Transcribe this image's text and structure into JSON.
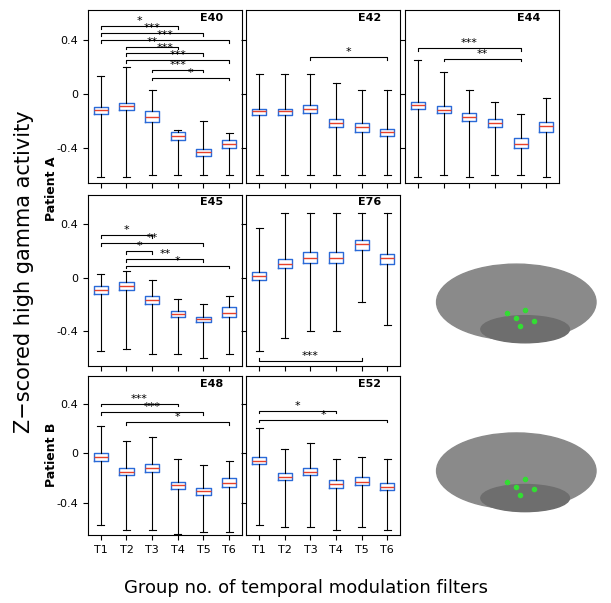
{
  "y_label": "Z−scored high gamma activity",
  "x_label": "Group no. of temporal modulation filters",
  "annotations": [
    "Patient A",
    "Patient B"
  ],
  "chart_data": [
    {
      "type": "box",
      "title": "E40",
      "color": "#2a6ad8",
      "tick_labels": "y",
      "categories": [
        "T1",
        "T2",
        "T3",
        "T4",
        "T5",
        "T6"
      ],
      "boxes": [
        {
          "median": -0.12,
          "q1": -0.15,
          "q3": -0.1,
          "whislo": -0.62,
          "whishi": 0.13
        },
        {
          "median": -0.09,
          "q1": -0.12,
          "q3": -0.07,
          "whislo": -0.62,
          "whishi": 0.2
        },
        {
          "median": -0.17,
          "q1": -0.21,
          "q3": -0.13,
          "whislo": -0.6,
          "whishi": 0.03
        },
        {
          "median": -0.31,
          "q1": -0.34,
          "q3": -0.28,
          "whislo": -0.6,
          "whishi": -0.27
        },
        {
          "median": -0.43,
          "q1": -0.46,
          "q3": -0.41,
          "whislo": -0.6,
          "whishi": -0.2
        },
        {
          "median": -0.37,
          "q1": -0.4,
          "q3": -0.34,
          "whislo": -0.6,
          "whishi": -0.29
        }
      ],
      "comparisons": [
        {
          "from": "T1",
          "to": "T4",
          "label": "*",
          "y": 0.5
        },
        {
          "from": "T1",
          "to": "T5",
          "label": "***",
          "y": 0.45
        },
        {
          "from": "T1",
          "to": "T6",
          "label": "***",
          "y": 0.4
        },
        {
          "from": "T2",
          "to": "T4",
          "label": "**",
          "y": 0.35
        },
        {
          "from": "T2",
          "to": "T5",
          "label": "***",
          "y": 0.3
        },
        {
          "from": "T2",
          "to": "T6",
          "label": "***",
          "y": 0.25
        },
        {
          "from": "T3",
          "to": "T5",
          "label": "***",
          "y": 0.18
        },
        {
          "from": "T3",
          "to": "T6",
          "label": "*",
          "y": 0.12
        }
      ],
      "ylim": [
        -0.66,
        0.62
      ],
      "yticks": [
        -0.4,
        0,
        0.4
      ]
    },
    {
      "type": "box",
      "title": "E42",
      "color": "#2a6ad8",
      "tick_labels": false,
      "categories": [
        "T1",
        "T2",
        "T3",
        "T4",
        "T5",
        "T6"
      ],
      "boxes": [
        {
          "median": -0.13,
          "q1": -0.16,
          "q3": -0.11,
          "whislo": -0.6,
          "whishi": 0.15
        },
        {
          "median": -0.13,
          "q1": -0.16,
          "q3": -0.11,
          "whislo": -0.6,
          "whishi": 0.15
        },
        {
          "median": -0.11,
          "q1": -0.14,
          "q3": -0.08,
          "whislo": -0.6,
          "whishi": 0.15
        },
        {
          "median": -0.22,
          "q1": -0.25,
          "q3": -0.19,
          "whislo": -0.6,
          "whishi": 0.08
        },
        {
          "median": -0.25,
          "q1": -0.28,
          "q3": -0.22,
          "whislo": -0.6,
          "whishi": 0.03
        },
        {
          "median": -0.28,
          "q1": -0.31,
          "q3": -0.26,
          "whislo": -0.6,
          "whishi": 0.03
        }
      ],
      "comparisons": [
        {
          "from": "T3",
          "to": "T6",
          "label": "*",
          "y": 0.27
        }
      ],
      "ylim": [
        -0.66,
        0.62
      ],
      "yticks": [
        -0.4,
        0,
        0.4
      ]
    },
    {
      "type": "box",
      "title": "E44",
      "color": "#2a6ad8",
      "tick_labels": false,
      "categories": [
        "T1",
        "T2",
        "T3",
        "T4",
        "T5",
        "T6"
      ],
      "boxes": [
        {
          "median": -0.08,
          "q1": -0.11,
          "q3": -0.06,
          "whislo": -0.62,
          "whishi": 0.25
        },
        {
          "median": -0.12,
          "q1": -0.14,
          "q3": -0.09,
          "whislo": -0.6,
          "whishi": 0.16
        },
        {
          "median": -0.17,
          "q1": -0.2,
          "q3": -0.14,
          "whislo": -0.62,
          "whishi": 0.03
        },
        {
          "median": -0.22,
          "q1": -0.25,
          "q3": -0.19,
          "whislo": -0.6,
          "whishi": -0.06
        },
        {
          "median": -0.37,
          "q1": -0.4,
          "q3": -0.33,
          "whislo": -0.6,
          "whishi": -0.15
        },
        {
          "median": -0.24,
          "q1": -0.28,
          "q3": -0.21,
          "whislo": -0.62,
          "whishi": -0.03
        }
      ],
      "comparisons": [
        {
          "from": "T1",
          "to": "T5",
          "label": "***",
          "y": 0.34
        },
        {
          "from": "T2",
          "to": "T5",
          "label": "**",
          "y": 0.26
        }
      ],
      "ylim": [
        -0.66,
        0.62
      ],
      "yticks": [
        -0.4,
        0,
        0.4
      ]
    },
    {
      "type": "box",
      "title": "E45",
      "color": "#2a6ad8",
      "tick_labels": "y",
      "categories": [
        "T1",
        "T2",
        "T3",
        "T4",
        "T5",
        "T6"
      ],
      "boxes": [
        {
          "median": -0.09,
          "q1": -0.12,
          "q3": -0.06,
          "whislo": -0.55,
          "whishi": 0.03
        },
        {
          "median": -0.06,
          "q1": -0.09,
          "q3": -0.03,
          "whislo": -0.53,
          "whishi": 0.05
        },
        {
          "median": -0.17,
          "q1": -0.2,
          "q3": -0.14,
          "whislo": -0.57,
          "whishi": -0.02
        },
        {
          "median": -0.27,
          "q1": -0.29,
          "q3": -0.25,
          "whislo": -0.57,
          "whishi": -0.16
        },
        {
          "median": -0.31,
          "q1": -0.33,
          "q3": -0.29,
          "whislo": -0.6,
          "whishi": -0.2
        },
        {
          "median": -0.26,
          "q1": -0.29,
          "q3": -0.22,
          "whislo": -0.57,
          "whishi": -0.14
        }
      ],
      "comparisons": [
        {
          "from": "T1",
          "to": "T3",
          "label": "*",
          "y": 0.32
        },
        {
          "from": "T1",
          "to": "T5",
          "label": "**",
          "y": 0.26
        },
        {
          "from": "T2",
          "to": "T3",
          "label": "*",
          "y": 0.2
        },
        {
          "from": "T2",
          "to": "T5",
          "label": "**",
          "y": 0.14
        },
        {
          "from": "T2",
          "to": "T6",
          "label": "*",
          "y": 0.09
        }
      ],
      "ylim": [
        -0.66,
        0.62
      ],
      "yticks": [
        -0.4,
        0,
        0.4
      ]
    },
    {
      "type": "box",
      "title": "E76",
      "color": "#2a6ad8",
      "tick_labels": false,
      "categories": [
        "T1",
        "T2",
        "T3",
        "T4",
        "T5",
        "T6"
      ],
      "boxes": [
        {
          "median": 0.01,
          "q1": -0.02,
          "q3": 0.04,
          "whislo": -0.55,
          "whishi": 0.37
        },
        {
          "median": 0.1,
          "q1": 0.07,
          "q3": 0.14,
          "whislo": -0.45,
          "whishi": 0.48
        },
        {
          "median": 0.15,
          "q1": 0.11,
          "q3": 0.19,
          "whislo": -0.4,
          "whishi": 0.48
        },
        {
          "median": 0.15,
          "q1": 0.11,
          "q3": 0.19,
          "whislo": -0.4,
          "whishi": 0.48
        },
        {
          "median": 0.25,
          "q1": 0.21,
          "q3": 0.28,
          "whislo": -0.18,
          "whishi": 0.48
        },
        {
          "median": 0.15,
          "q1": 0.1,
          "q3": 0.18,
          "whislo": -0.35,
          "whishi": 0.48
        }
      ],
      "comparisons": [
        {
          "from": "T1",
          "to": "T5",
          "label": "***",
          "y": -0.62
        }
      ],
      "ylim": [
        -0.66,
        0.62
      ],
      "yticks": [
        -0.4,
        0,
        0.4
      ]
    },
    {
      "type": "box",
      "title": "E48",
      "color": "#2a6ad8",
      "categories": [
        "T1",
        "T2",
        "T3",
        "T4",
        "T5",
        "T6"
      ],
      "boxes": [
        {
          "median": -0.03,
          "q1": -0.06,
          "q3": 0.0,
          "whislo": -0.58,
          "whishi": 0.22
        },
        {
          "median": -0.15,
          "q1": -0.18,
          "q3": -0.12,
          "whislo": -0.62,
          "whishi": 0.1
        },
        {
          "median": -0.12,
          "q1": -0.15,
          "q3": -0.09,
          "whislo": -0.62,
          "whishi": 0.13
        },
        {
          "median": -0.26,
          "q1": -0.29,
          "q3": -0.23,
          "whislo": -0.65,
          "whishi": -0.05
        },
        {
          "median": -0.31,
          "q1": -0.34,
          "q3": -0.28,
          "whislo": -0.64,
          "whishi": -0.1
        },
        {
          "median": -0.24,
          "q1": -0.27,
          "q3": -0.2,
          "whislo": -0.64,
          "whishi": -0.06
        }
      ],
      "comparisons": [
        {
          "from": "T1",
          "to": "T4",
          "label": "***",
          "y": 0.4
        },
        {
          "from": "T1",
          "to": "T5",
          "label": "***",
          "y": 0.33
        },
        {
          "from": "T2",
          "to": "T6",
          "label": "*",
          "y": 0.25
        }
      ],
      "ylim": [
        -0.66,
        0.62
      ],
      "yticks": [
        -0.4,
        0,
        0.4
      ]
    },
    {
      "type": "box",
      "title": "E52",
      "color": "#2a6ad8",
      "tick_labels": "x",
      "categories": [
        "T1",
        "T2",
        "T3",
        "T4",
        "T5",
        "T6"
      ],
      "boxes": [
        {
          "median": -0.06,
          "q1": -0.09,
          "q3": -0.03,
          "whislo": -0.58,
          "whishi": 0.2
        },
        {
          "median": -0.19,
          "q1": -0.22,
          "q3": -0.16,
          "whislo": -0.6,
          "whishi": 0.03
        },
        {
          "median": -0.15,
          "q1": -0.18,
          "q3": -0.12,
          "whislo": -0.6,
          "whishi": 0.08
        },
        {
          "median": -0.25,
          "q1": -0.28,
          "q3": -0.22,
          "whislo": -0.62,
          "whishi": -0.05
        },
        {
          "median": -0.23,
          "q1": -0.26,
          "q3": -0.19,
          "whislo": -0.6,
          "whishi": -0.03
        },
        {
          "median": -0.27,
          "q1": -0.3,
          "q3": -0.24,
          "whislo": -0.62,
          "whishi": -0.05
        }
      ],
      "comparisons": [
        {
          "from": "T1",
          "to": "T4",
          "label": "*",
          "y": 0.34
        },
        {
          "from": "T1",
          "to": "T6",
          "label": "*",
          "y": 0.27
        }
      ],
      "ylim": [
        -0.66,
        0.62
      ],
      "yticks": [
        -0.4,
        0,
        0.4
      ]
    }
  ]
}
